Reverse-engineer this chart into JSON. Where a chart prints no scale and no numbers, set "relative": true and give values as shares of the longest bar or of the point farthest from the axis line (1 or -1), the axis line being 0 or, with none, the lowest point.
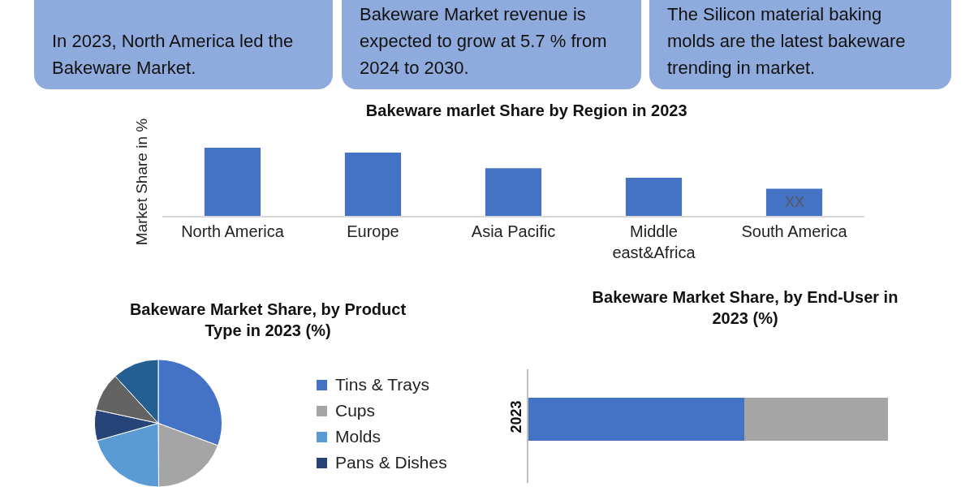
{
  "chart_data": [
    {
      "type": "other",
      "annotations": [
        "In 2023, North America led the Bakeware Market.",
        "Bakeware Market revenue is expected to grow at 5.7 % from 2024 to 2030.",
        "The Silicon material baking molds are the latest bakeware trending in market."
      ]
    },
    {
      "type": "bar",
      "title": "Bakeware marlet Share by Region in 2023",
      "ylabel": "Market Share in %",
      "relative": true,
      "categories": [
        "North America",
        "Europe",
        "Asia Pacific",
        "Middle east&Africa",
        "South America"
      ],
      "values": [
        1,
        0.93,
        0.7,
        0.56,
        0.4
      ],
      "annotations": [
        "XX"
      ],
      "color": "#4472c4"
    },
    {
      "type": "pie",
      "title": "Bakeware Market Share, by Product Type in 2023 (%)",
      "categories": [
        "Tins & Trays",
        "Cups",
        "Molds",
        "Pans & Dishes",
        null,
        null
      ],
      "values": [
        30.7,
        19.2,
        20.7,
        7.8,
        9.8,
        11.8
      ],
      "colors": [
        "#4472c4",
        "#a5a5a5",
        "#5b9bd5",
        "#264478",
        "#636363",
        "#255e91"
      ],
      "legend": "right"
    },
    {
      "type": "bar",
      "title": "Bakeware Market Share, by End-User in 2023 (%)",
      "orientation": "horizontal",
      "stacked": true,
      "relative": true,
      "categories": [
        "2023"
      ],
      "series": [
        {
          "color": "#4472c4",
          "values": [
            0.6
          ]
        },
        {
          "color": "#a5a5a5",
          "values": [
            0.4
          ]
        }
      ]
    }
  ]
}
